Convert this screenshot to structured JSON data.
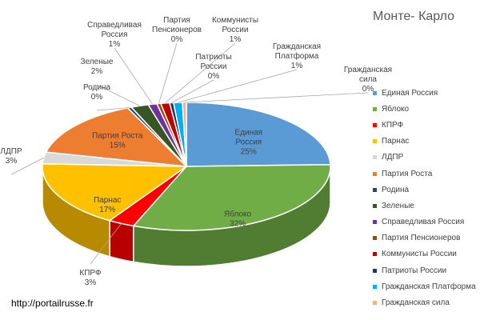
{
  "chart_data": {
    "type": "pie",
    "title": "Монте- Карло",
    "legend_position": "right",
    "slices": [
      {
        "label": "Единая Россия",
        "value": 25,
        "value_label": "25%",
        "color": "#5b9bd5"
      },
      {
        "label": "Яблоко",
        "value": 32,
        "value_label": "32%",
        "color": "#70ad47"
      },
      {
        "label": "КПРФ",
        "value": 3,
        "value_label": "3%",
        "color": "#ff0000"
      },
      {
        "label": "Парнас",
        "value": 17,
        "value_label": "17%",
        "color": "#ffc000"
      },
      {
        "label": "ЛДПР",
        "value": 3,
        "value_label": "3%",
        "color": "#d9d9d9"
      },
      {
        "label": "Партия Роста",
        "value": 15,
        "value_label": "15%",
        "color": "#ed7d31"
      },
      {
        "label": "Родина",
        "value": 0,
        "value_label": "0%",
        "color": "#264478"
      },
      {
        "label": "Зеленые",
        "value": 2,
        "value_label": "2%",
        "color": "#375623"
      },
      {
        "label": "Справедливая Россия",
        "value": 1,
        "value_label": "1%",
        "color": "#7030a0"
      },
      {
        "label": "Партия Пенсионеров",
        "value": 0,
        "value_label": "0%",
        "color": "#9e480e"
      },
      {
        "label": "Коммунисты России",
        "value": 1,
        "value_label": "1%",
        "color": "#c00000"
      },
      {
        "label": "Патриоты России",
        "value": 0,
        "value_label": "0%",
        "color": "#1f3864"
      },
      {
        "label": "Гражданская Платформа",
        "value": 1,
        "value_label": "1%",
        "color": "#00b0f0"
      },
      {
        "label": "Гражданская сила",
        "value": 0,
        "value_label": "0%",
        "color": "#f4b183"
      }
    ]
  },
  "source_text": "http://portailrusse.fr"
}
